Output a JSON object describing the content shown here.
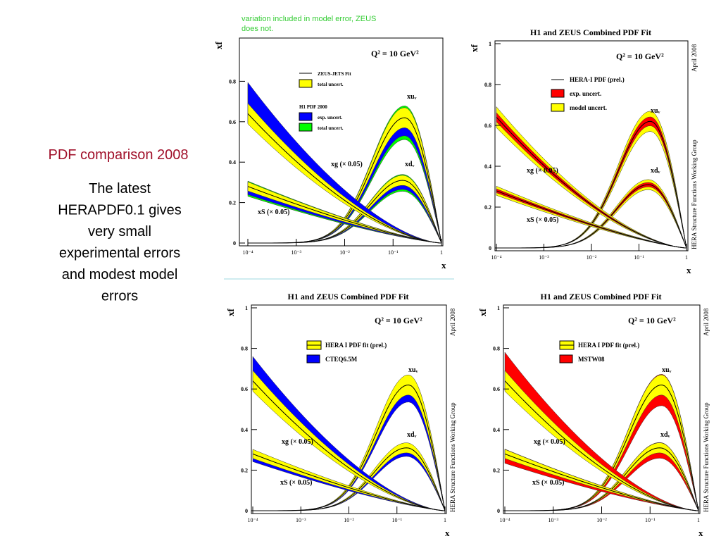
{
  "slide": {
    "title": "PDF comparison 2008",
    "body": [
      "The latest",
      "HERAPDF0.1 gives",
      "very small",
      "experimental errors",
      "and modest model",
      "errors"
    ]
  },
  "plots": [
    {
      "caption": [
        "variation included in model error, ZEUS",
        "does not."
      ],
      "y_label": "xf",
      "x_label": "x",
      "q2": "Q² = 10 GeV²",
      "yticks": [
        "0",
        "0.2",
        "0.4",
        "0.6",
        "0.8"
      ],
      "xticks": [
        "10⁻⁴",
        "10⁻³",
        "10⁻²",
        "10⁻¹",
        "1"
      ],
      "legend": [
        {
          "label": "ZEUS-JETS Fit",
          "color": "#000000",
          "style": "line"
        },
        {
          "label": "total uncert.",
          "color": "#ffff00",
          "style": "box"
        },
        {
          "label": "H1 PDF 2000"
        },
        {
          "label": "exp. uncert.",
          "color": "#0000ff",
          "style": "box"
        },
        {
          "label": "total uncert.",
          "color": "#00ff00",
          "style": "box"
        }
      ],
      "curve_labels": [
        "xuᵥ",
        "xdᵥ",
        "xg (× 0.05)",
        "xS (× 0.05)"
      ]
    },
    {
      "title": "H1 and ZEUS Combined PDF Fit",
      "side": [
        "April 2008",
        "HERA Structure Functions Working Group"
      ],
      "y_label": "xf",
      "x_label": "x",
      "q2": "Q² = 10 GeV²",
      "yticks": [
        "0",
        "0.2",
        "0.4",
        "0.6",
        "0.8",
        "1"
      ],
      "xticks": [
        "10⁻⁴",
        "10⁻³",
        "10⁻²",
        "10⁻¹",
        "1"
      ],
      "legend": [
        {
          "label": "HERA-I PDF (prel.)",
          "color": "#000000",
          "style": "line"
        },
        {
          "label": "exp. uncert.",
          "color": "#ff0000",
          "style": "box"
        },
        {
          "label": "model uncert.",
          "color": "#ffff00",
          "style": "box"
        }
      ],
      "curve_labels": [
        "xuᵥ",
        "xdᵥ",
        "xg (× 0.05)",
        "xS (× 0.05)"
      ]
    },
    {
      "title": "H1 and ZEUS Combined PDF Fit",
      "side": [
        "April 2008",
        "HERA Structure Functions Working Group"
      ],
      "y_label": "xf",
      "x_label": "x",
      "q2": "Q² = 10 GeV²",
      "yticks": [
        "0",
        "0.2",
        "0.4",
        "0.6",
        "0.8",
        "1"
      ],
      "xticks": [
        "10⁻⁴",
        "10⁻³",
        "10⁻²",
        "10⁻¹",
        "1"
      ],
      "legend": [
        {
          "label": "HERA I PDF fit (prel.)",
          "color": "#ffff00",
          "style": "band"
        },
        {
          "label": "CTEQ6.5M",
          "color": "#0000ff",
          "style": "box"
        }
      ],
      "curve_labels": [
        "xuᵥ",
        "xdᵥ",
        "xg (× 0.05)",
        "xS (× 0.05)"
      ]
    },
    {
      "title": "H1 and ZEUS Combined PDF Fit",
      "side": [
        "April 2008",
        "HERA Structure Functions Working Group"
      ],
      "y_label": "xf",
      "x_label": "x",
      "q2": "Q² = 10 GeV²",
      "yticks": [
        "0",
        "0.2",
        "0.4",
        "0.6",
        "0.8",
        "1"
      ],
      "xticks": [
        "10⁻⁴",
        "10⁻³",
        "10⁻²",
        "10⁻¹",
        "1"
      ],
      "legend": [
        {
          "label": "HERA I PDF fit (prel.)",
          "color": "#ffff00",
          "style": "band"
        },
        {
          "label": "MSTW08",
          "color": "#ff0000",
          "style": "box"
        }
      ],
      "curve_labels": [
        "xuᵥ",
        "xdᵥ",
        "xg (× 0.05)",
        "xS (× 0.05)"
      ]
    }
  ]
}
